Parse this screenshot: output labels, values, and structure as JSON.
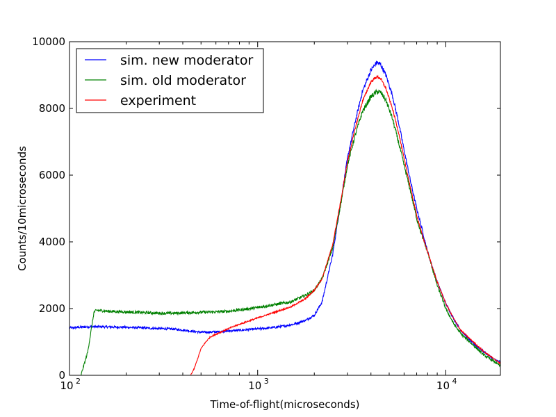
{
  "chart_data": {
    "type": "line",
    "title": "",
    "xlabel": "Time-of-flight(microseconds)",
    "ylabel": "Counts/10microseconds",
    "xscale": "log",
    "xlim": [
      100,
      19500
    ],
    "ylim": [
      0,
      10000
    ],
    "x_ticks": [
      {
        "value": 100,
        "base": "10",
        "exp": "2"
      },
      {
        "value": 1000,
        "base": "10",
        "exp": "3"
      },
      {
        "value": 10000,
        "base": "10",
        "exp": "4"
      }
    ],
    "y_ticks": [
      0,
      2000,
      4000,
      6000,
      8000,
      10000
    ],
    "y_tick_labels": [
      "0",
      "2000",
      "4000",
      "6000",
      "8000",
      "10000"
    ],
    "grid": false,
    "legend_position": "top-left",
    "series": [
      {
        "name": "sim. new moderator",
        "color": "#0000ff",
        "noise": 70,
        "x": [
          100,
          130,
          160,
          200,
          250,
          300,
          350,
          400,
          450,
          500,
          600,
          700,
          800,
          1000,
          1200,
          1400,
          1600,
          1800,
          2000,
          2200,
          2500,
          2800,
          3000,
          3300,
          3600,
          4000,
          4300,
          4500,
          4800,
          5200,
          5600,
          6000,
          6500,
          7000,
          7500,
          8000,
          9000,
          10000,
          11000,
          12000,
          14000,
          16000,
          18000,
          19500
        ],
        "y": [
          1420,
          1460,
          1450,
          1440,
          1420,
          1400,
          1390,
          1360,
          1320,
          1290,
          1300,
          1330,
          1350,
          1390,
          1430,
          1480,
          1550,
          1650,
          1800,
          2200,
          3600,
          5400,
          6500,
          7600,
          8500,
          9150,
          9380,
          9320,
          9000,
          8400,
          7600,
          6750,
          5800,
          5000,
          4350,
          3700,
          2800,
          2150,
          1700,
          1350,
          950,
          700,
          480,
          400
        ]
      },
      {
        "name": "sim. old moderator",
        "color": "#008000",
        "noise": 80,
        "x": [
          100,
          115,
          125,
          135,
          140,
          160,
          200,
          250,
          300,
          350,
          400,
          450,
          500,
          600,
          700,
          800,
          1000,
          1200,
          1500,
          1800,
          2000,
          2200,
          2500,
          2800,
          3000,
          3300,
          3600,
          4000,
          4300,
          4500,
          4800,
          5200,
          5600,
          6000,
          6500,
          7000,
          7500,
          8000,
          9000,
          10000,
          11000,
          12000,
          14000,
          16000,
          18000,
          19500
        ],
        "y": [
          -200,
          0,
          700,
          1900,
          1950,
          1920,
          1900,
          1880,
          1860,
          1860,
          1870,
          1880,
          1890,
          1900,
          1920,
          1960,
          2030,
          2110,
          2200,
          2400,
          2550,
          2900,
          3800,
          5300,
          6300,
          7200,
          7900,
          8350,
          8500,
          8480,
          8250,
          7700,
          7000,
          6300,
          5500,
          4700,
          4150,
          3700,
          2700,
          2000,
          1550,
          1250,
          900,
          600,
          420,
          280
        ]
      },
      {
        "name": "experiment",
        "color": "#ff0000",
        "noise": 40,
        "x": [
          100,
          300,
          400,
          440,
          460,
          480,
          500,
          530,
          560,
          600,
          700,
          800,
          1000,
          1200,
          1500,
          1800,
          2000,
          2200,
          2500,
          2800,
          3000,
          3300,
          3600,
          4000,
          4300,
          4500,
          4800,
          5200,
          5600,
          6000,
          6500,
          7000,
          7500,
          8000,
          9000,
          10000,
          11000,
          12000,
          14000,
          16000,
          18000,
          19500
        ],
        "y": [
          -200,
          -200,
          -100,
          0,
          200,
          500,
          800,
          1000,
          1150,
          1230,
          1400,
          1530,
          1720,
          1870,
          2050,
          2300,
          2550,
          2900,
          3900,
          5400,
          6400,
          7400,
          8200,
          8800,
          8950,
          8900,
          8600,
          8000,
          7300,
          6500,
          5600,
          4800,
          4200,
          3700,
          2800,
          2150,
          1700,
          1350,
          1000,
          700,
          500,
          350
        ]
      }
    ]
  }
}
